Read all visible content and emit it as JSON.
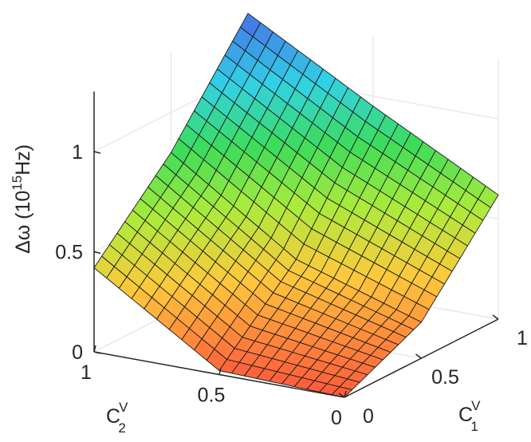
{
  "chart_data": {
    "type": "surface",
    "title": "",
    "xlabel": {
      "base": "C",
      "sub": "1",
      "sup": "V"
    },
    "ylabel": {
      "base": "C",
      "sub": "2",
      "sup": "V"
    },
    "zlabel": {
      "prefix": "Δω (10",
      "exp": "15",
      "suffix": "Hz)"
    },
    "xlim": [
      0,
      1
    ],
    "ylim": [
      0,
      1
    ],
    "zlim": [
      0,
      1.3
    ],
    "xticks": [
      0,
      0.5,
      1
    ],
    "xtick_labels": [
      "0",
      "0.5",
      "1"
    ],
    "yticks": [
      0,
      0.5,
      1
    ],
    "ytick_labels": [
      "0",
      "0.5",
      "1"
    ],
    "zticks": [
      0,
      0.5,
      1
    ],
    "ztick_labels": [
      "0",
      "0.5",
      "1"
    ],
    "grid": true,
    "colormap": "jet (red low → blue high)",
    "surface": {
      "x": [
        0,
        0.5,
        1
      ],
      "y": [
        0,
        0.5,
        1
      ],
      "z": [
        [
          0.0,
          0.18,
          0.62
        ],
        [
          0.02,
          0.38,
          0.95
        ],
        [
          0.42,
          0.8,
          1.3
        ]
      ],
      "note_rows_y_cols_x": true
    }
  }
}
